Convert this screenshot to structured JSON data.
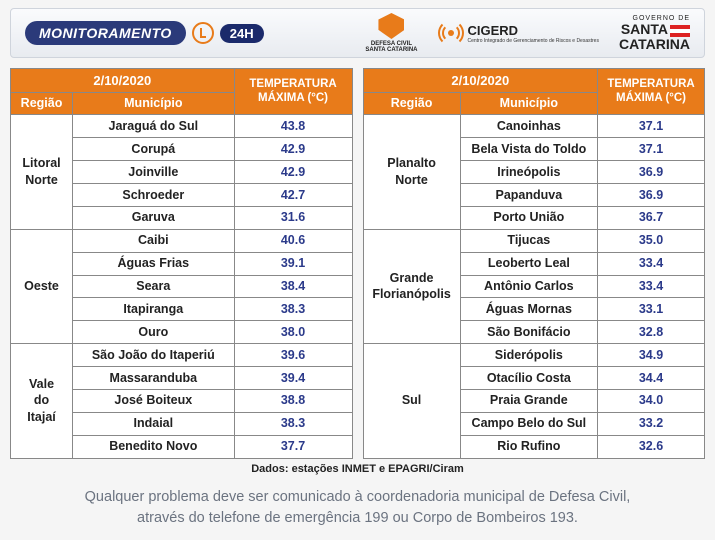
{
  "header": {
    "title": "MONITORAMENTO",
    "badge24": "24H",
    "defesa_civil": "DEFESA CIVIL",
    "defesa_civil_sub": "SANTA CATARINA",
    "cigerd": "CIGERD",
    "cigerd_sub": "Centro Integrado de Gerenciamento de Riscos e Desastres",
    "gov": "GOVERNO DE",
    "santa": "SANTA",
    "catarina": "CATARINA"
  },
  "colors": {
    "header_orange": "#e87b1a",
    "temp_value": "#2b3a8a",
    "border": "#888888",
    "bg": "#ffffff"
  },
  "date": "2/10/2020",
  "temp_header_l1": "TEMPERATURA",
  "temp_header_l2": "MÁXIMA (°C)",
  "col_region": "Região",
  "col_muni": "Município",
  "left_regions": [
    {
      "name": "Litoral Norte",
      "rows": [
        {
          "muni": "Jaraguá do Sul",
          "temp": "43.8"
        },
        {
          "muni": "Corupá",
          "temp": "42.9"
        },
        {
          "muni": "Joinville",
          "temp": "42.9"
        },
        {
          "muni": "Schroeder",
          "temp": "42.7"
        },
        {
          "muni": "Garuva",
          "temp": "31.6"
        }
      ]
    },
    {
      "name": "Oeste",
      "rows": [
        {
          "muni": "Caibi",
          "temp": "40.6"
        },
        {
          "muni": "Águas Frias",
          "temp": "39.1"
        },
        {
          "muni": "Seara",
          "temp": "38.4"
        },
        {
          "muni": "Itapiranga",
          "temp": "38.3"
        },
        {
          "muni": "Ouro",
          "temp": "38.0"
        }
      ]
    },
    {
      "name": "Vale do Itajaí",
      "rows": [
        {
          "muni": "São João do Itaperiú",
          "temp": "39.6"
        },
        {
          "muni": "Massaranduba",
          "temp": "39.4"
        },
        {
          "muni": "José Boiteux",
          "temp": "38.8"
        },
        {
          "muni": "Indaial",
          "temp": "38.3"
        },
        {
          "muni": "Benedito Novo",
          "temp": "37.7"
        }
      ]
    }
  ],
  "right_regions": [
    {
      "name": "Planalto Norte",
      "rows": [
        {
          "muni": "Canoinhas",
          "temp": "37.1"
        },
        {
          "muni": "Bela Vista do Toldo",
          "temp": "37.1"
        },
        {
          "muni": "Irineópolis",
          "temp": "36.9"
        },
        {
          "muni": "Papanduva",
          "temp": "36.9"
        },
        {
          "muni": "Porto União",
          "temp": "36.7"
        }
      ]
    },
    {
      "name": "Grande Florianópolis",
      "rows": [
        {
          "muni": "Tijucas",
          "temp": "35.0"
        },
        {
          "muni": "Leoberto Leal",
          "temp": "33.4"
        },
        {
          "muni": "Antônio Carlos",
          "temp": "33.4"
        },
        {
          "muni": "Águas Mornas",
          "temp": "33.1"
        },
        {
          "muni": "São Bonifácio",
          "temp": "32.8"
        }
      ]
    },
    {
      "name": "Sul",
      "rows": [
        {
          "muni": "Siderópolis",
          "temp": "34.9"
        },
        {
          "muni": "Otacílio Costa",
          "temp": "34.4"
        },
        {
          "muni": "Praia Grande",
          "temp": "34.0"
        },
        {
          "muni": "Campo Belo do Sul",
          "temp": "33.2"
        },
        {
          "muni": "Rio Rufino",
          "temp": "32.6"
        }
      ]
    }
  ],
  "source": "Dados: estações INMET e EPAGRI/Ciram",
  "footer_l1": "Qualquer problema deve ser comunicado à coordenadoria municipal de Defesa Civil,",
  "footer_l2": "através do telefone de emergência 199 ou Corpo de Bombeiros 193."
}
